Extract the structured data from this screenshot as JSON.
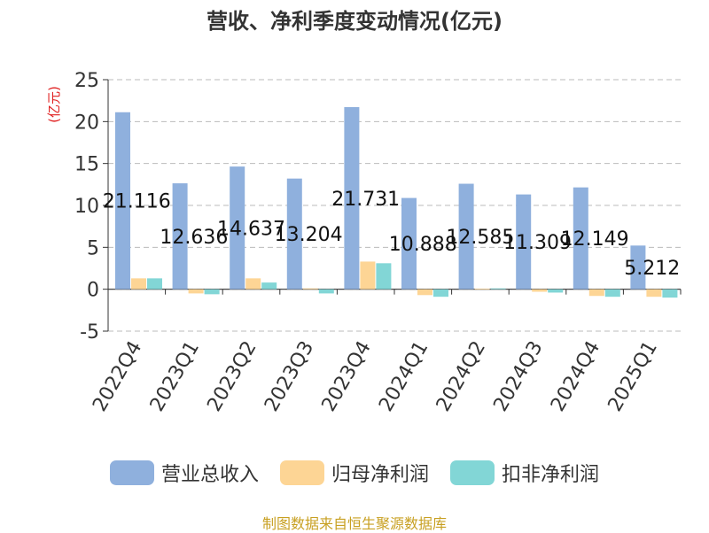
{
  "title": "营收、净利季度变动情况(亿元)",
  "source_note": "制图数据来自恒生聚源数据库",
  "colors": {
    "revenue": "#8fb0dd",
    "net_profit_parent": "#fdd595",
    "net_profit_deducted": "#82d6d6",
    "unit_label": "#e02020"
  },
  "chart_data": {
    "type": "bar",
    "title": "营收、净利季度变动情况(亿元)",
    "ylabel": "(亿元)",
    "xlabel": "",
    "ylim": [
      -5,
      25
    ],
    "yticks": [
      -5,
      0,
      5,
      10,
      15,
      20,
      25
    ],
    "grid": true,
    "legend": "bottom",
    "categories": [
      "2022Q4",
      "2023Q1",
      "2023Q2",
      "2023Q3",
      "2023Q4",
      "2024Q1",
      "2024Q2",
      "2024Q3",
      "2024Q4",
      "2025Q1"
    ],
    "series": [
      {
        "name": "营业总收入",
        "values": [
          21.116,
          12.636,
          14.637,
          13.204,
          21.731,
          10.888,
          12.585,
          11.309,
          12.149,
          5.212
        ],
        "labels": [
          "21.116",
          "12.636",
          "14.637",
          "13.204",
          "21.731",
          "10.888",
          "12.585",
          "11.309",
          "12.149",
          "5.212"
        ]
      },
      {
        "name": "归母净利润",
        "values": [
          1.3,
          -0.5,
          1.3,
          0.1,
          3.3,
          -0.7,
          0.05,
          -0.3,
          -0.8,
          -0.9
        ]
      },
      {
        "name": "扣非净利润",
        "values": [
          1.3,
          -0.6,
          0.8,
          -0.5,
          3.1,
          -0.9,
          0.1,
          -0.4,
          -0.9,
          -1.0
        ]
      }
    ]
  }
}
